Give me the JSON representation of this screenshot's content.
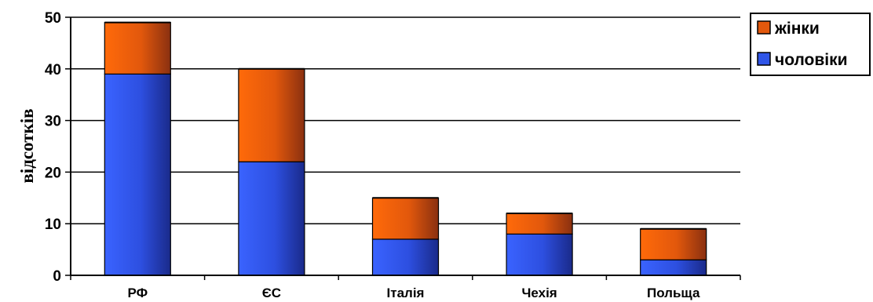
{
  "chart_data": {
    "type": "bar",
    "stacked": true,
    "categories": [
      "РФ",
      "ЄС",
      "Італія",
      "Чехія",
      "Польща"
    ],
    "series": [
      {
        "name": "чоловіки",
        "values": [
          39,
          22,
          7,
          8,
          3
        ],
        "color": "#2f55e8"
      },
      {
        "name": "жінки",
        "values": [
          10,
          18,
          8,
          4,
          6
        ],
        "color": "#e2580c"
      }
    ],
    "ylabel": "відсотків",
    "xlabel": "",
    "ylim": [
      0,
      50
    ],
    "yticks": [
      0,
      10,
      20,
      30,
      40,
      50
    ],
    "grid": true,
    "legend": "top-right"
  }
}
